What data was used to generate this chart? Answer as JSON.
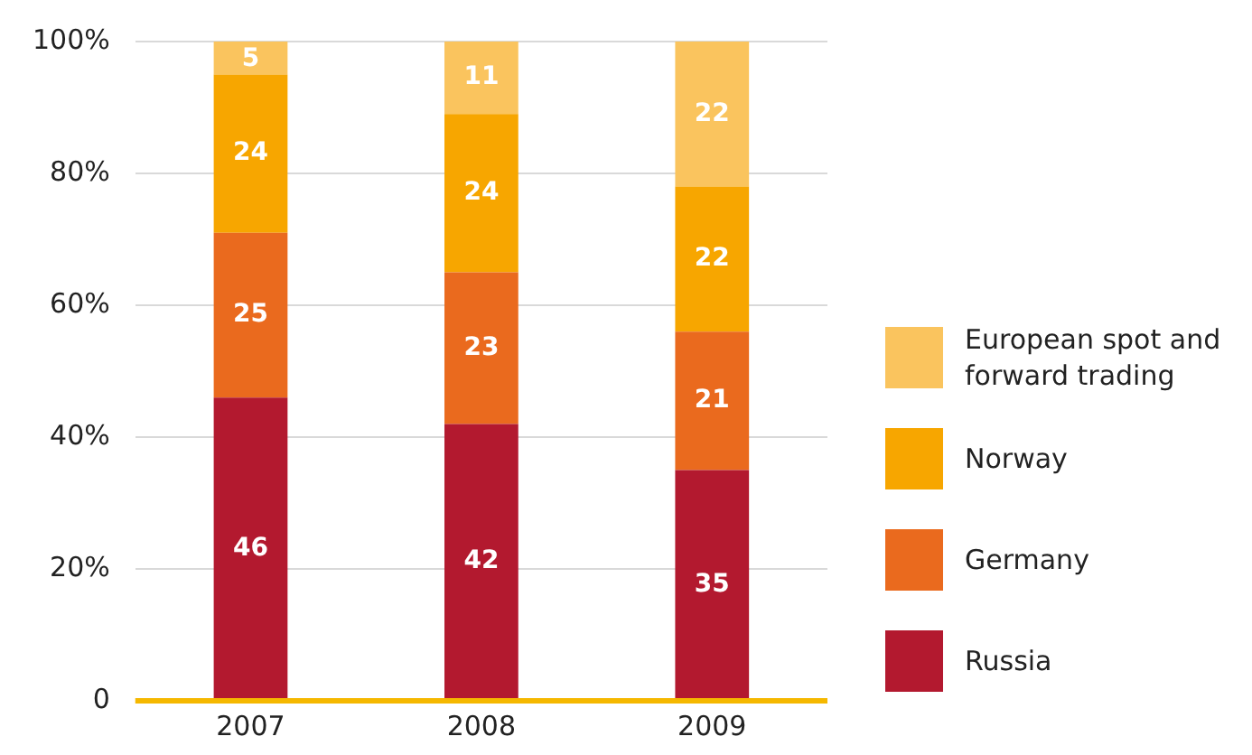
{
  "chart_data": {
    "type": "bar",
    "stacked": true,
    "categories": [
      "2007",
      "2008",
      "2009"
    ],
    "series": [
      {
        "name": "Russia",
        "color": "#b3192f",
        "values": [
          46,
          42,
          35
        ]
      },
      {
        "name": "Germany",
        "color": "#ea6a1e",
        "values": [
          25,
          23,
          21
        ]
      },
      {
        "name": "Norway",
        "color": "#f7a600",
        "values": [
          24,
          24,
          22
        ]
      },
      {
        "name": "European spot and forward trading",
        "color": "#fac45e",
        "values": [
          5,
          11,
          22
        ]
      }
    ],
    "ylim": [
      0,
      100
    ],
    "yticks": [
      0,
      {
        "value": 20,
        "label": "20%"
      },
      {
        "value": 40,
        "label": "40%"
      },
      {
        "value": 60,
        "label": "60%"
      },
      {
        "value": 80,
        "label": "80%"
      },
      {
        "value": 100,
        "label": "100%"
      }
    ],
    "grid": "y",
    "legend": "right",
    "data_labels": true
  }
}
